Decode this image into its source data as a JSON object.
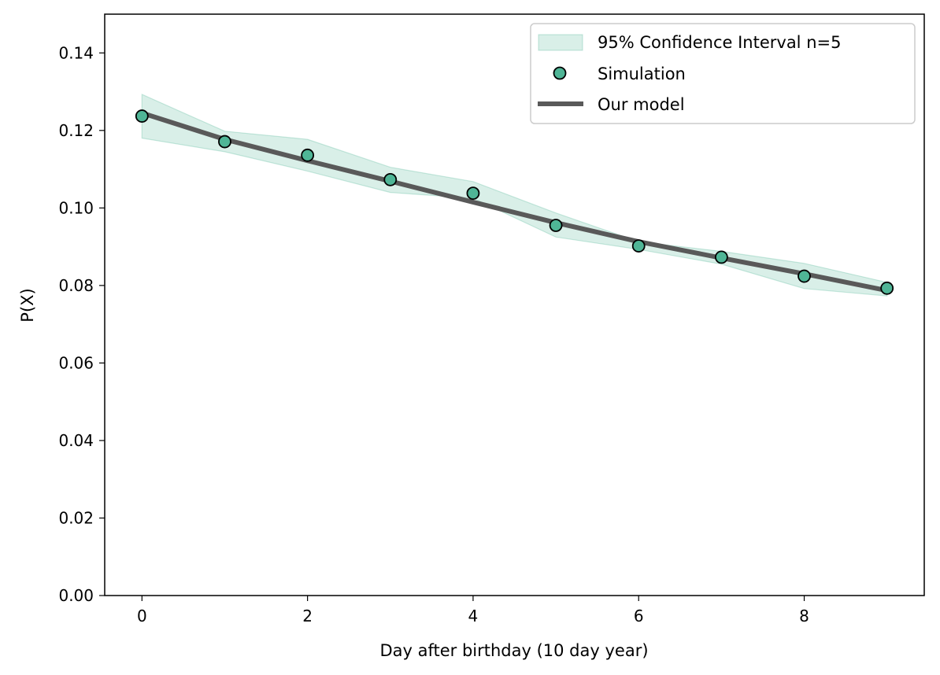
{
  "chart_data": {
    "type": "line",
    "title": "",
    "xlabel": "Day after birthday (10 day year)",
    "ylabel": "P(X)",
    "xlim": [
      -0.45,
      9.45
    ],
    "ylim": [
      0.0,
      0.15
    ],
    "xticks": [
      0,
      2,
      4,
      6,
      8
    ],
    "yticks": [
      0.0,
      0.02,
      0.04,
      0.06,
      0.08,
      0.1,
      0.12,
      0.14
    ],
    "xtick_labels": [
      "0",
      "2",
      "4",
      "6",
      "8"
    ],
    "ytick_labels": [
      "0.00",
      "0.02",
      "0.04",
      "0.06",
      "0.08",
      "0.10",
      "0.12",
      "0.14"
    ],
    "grid": false,
    "legend_position": "top-right",
    "x": [
      0,
      1,
      2,
      3,
      4,
      5,
      6,
      7,
      8,
      9
    ],
    "series": [
      {
        "name": "95% Confidence Interval n=5",
        "kind": "band",
        "lower": [
          0.118,
          0.1145,
          0.1095,
          0.104,
          0.1025,
          0.0925,
          0.0893,
          0.0855,
          0.0792,
          0.0773
        ],
        "upper": [
          0.1293,
          0.1198,
          0.1177,
          0.1105,
          0.1068,
          0.0987,
          0.0913,
          0.0888,
          0.0857,
          0.0808
        ],
        "color": "#1b9e77",
        "opacity": 0.17
      },
      {
        "name": "Simulation",
        "kind": "markers",
        "values": [
          0.1237,
          0.1171,
          0.1136,
          0.1073,
          0.1038,
          0.0955,
          0.0902,
          0.0873,
          0.0824,
          0.0793
        ],
        "color": "#4fb596",
        "edge_color": "#000000"
      },
      {
        "name": "Our model",
        "kind": "line",
        "values": [
          0.1245,
          0.1177,
          0.1122,
          0.1069,
          0.1015,
          0.0962,
          0.0913,
          0.0871,
          0.083,
          0.0787
        ],
        "color": "#595959"
      }
    ]
  }
}
